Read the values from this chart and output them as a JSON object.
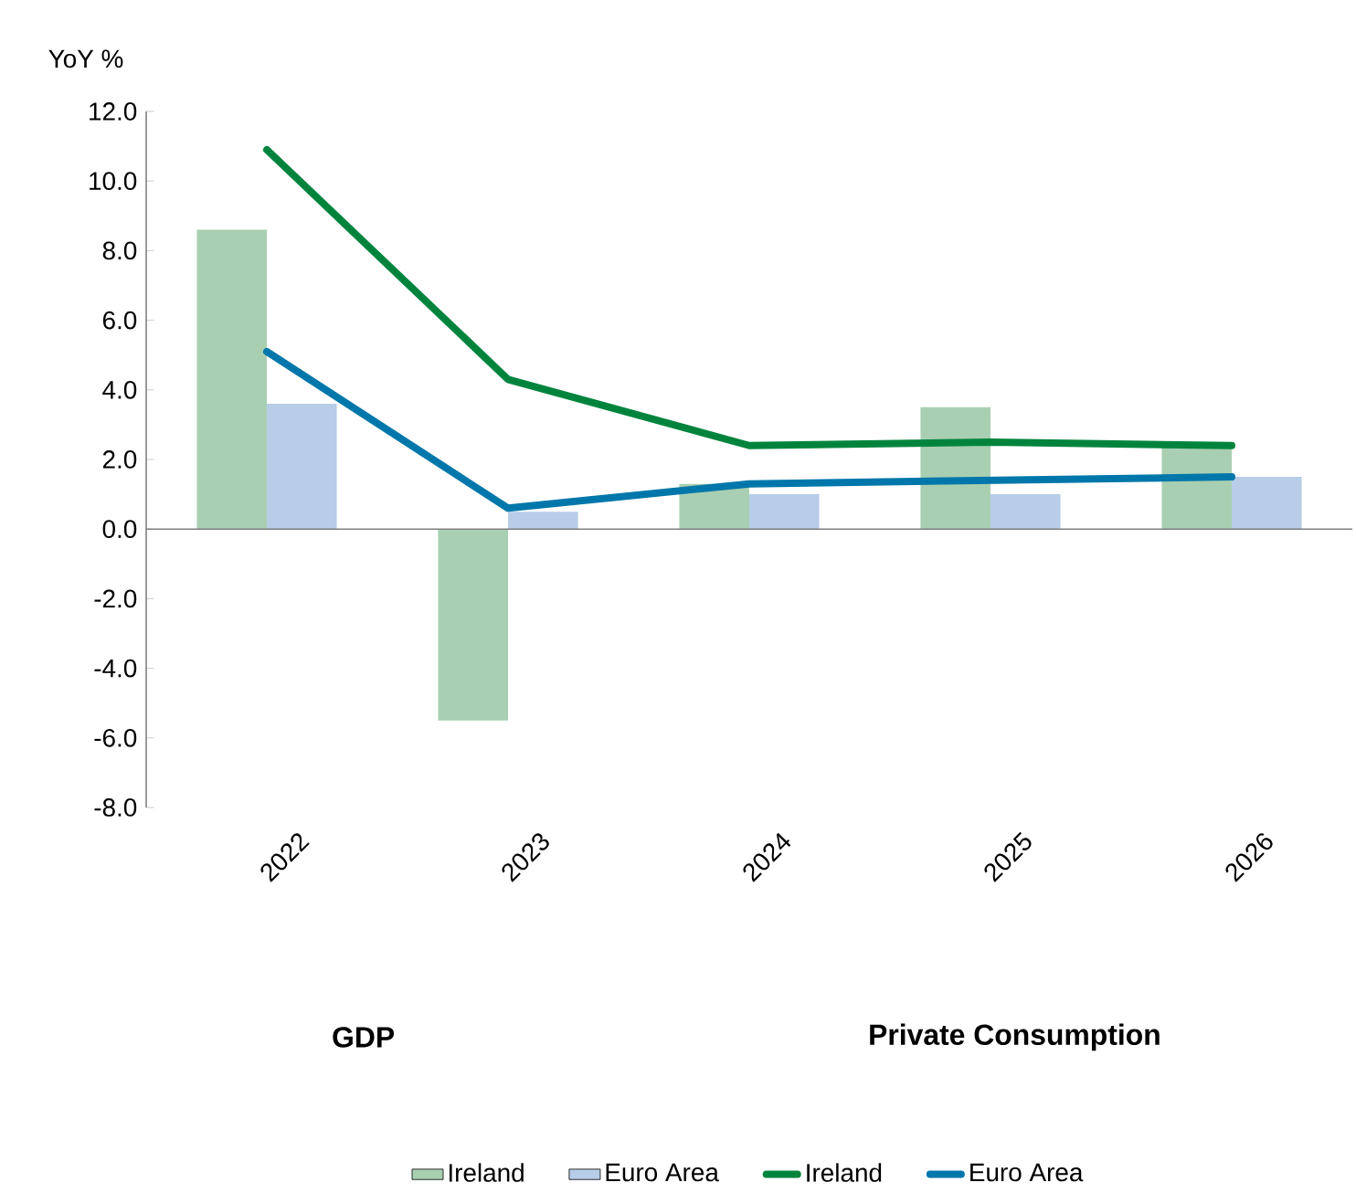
{
  "chart_data": {
    "type": "bar",
    "ylabel": "YoY %",
    "categories": [
      "2022",
      "2023",
      "2024",
      "2025",
      "2026"
    ],
    "series": [
      {
        "name": "Ireland",
        "color": "#a9cfb2",
        "values": [
          8.6,
          -5.5,
          1.3,
          3.5,
          2.4
        ]
      },
      {
        "name": "Euro Area",
        "color": "#b7cde8",
        "values": [
          3.6,
          0.5,
          1.0,
          1.0,
          1.5
        ]
      },
      {
        "name": "Ireland",
        "type": "line",
        "color": "#00843d",
        "values": [
          10.9,
          4.3,
          2.4,
          2.5,
          2.4
        ]
      },
      {
        "name": "Euro Area",
        "type": "line",
        "color": "#0077aa",
        "values": [
          5.1,
          0.6,
          1.3,
          1.4,
          1.5
        ]
      }
    ],
    "ylim": [
      -8,
      12
    ],
    "yticks": [
      {
        "value": -8,
        "label": "-8.0"
      },
      {
        "value": -6,
        "label": "-6.0"
      },
      {
        "value": -4,
        "label": "-4.0"
      },
      {
        "value": -2,
        "label": "-2.0"
      },
      {
        "value": 0,
        "label": "0.0"
      },
      {
        "value": 2,
        "label": "2.0"
      },
      {
        "value": 4,
        "label": "4.0"
      },
      {
        "value": 6,
        "label": "6.0"
      },
      {
        "value": 8,
        "label": "8.0"
      },
      {
        "value": 10,
        "label": "10.0"
      },
      {
        "value": 12,
        "label": "12.0"
      }
    ],
    "annotations": [
      "**GDP**",
      "**Private Consumption**"
    ],
    "legend": "bottom",
    "marker": "none",
    "line_style": "solid"
  }
}
